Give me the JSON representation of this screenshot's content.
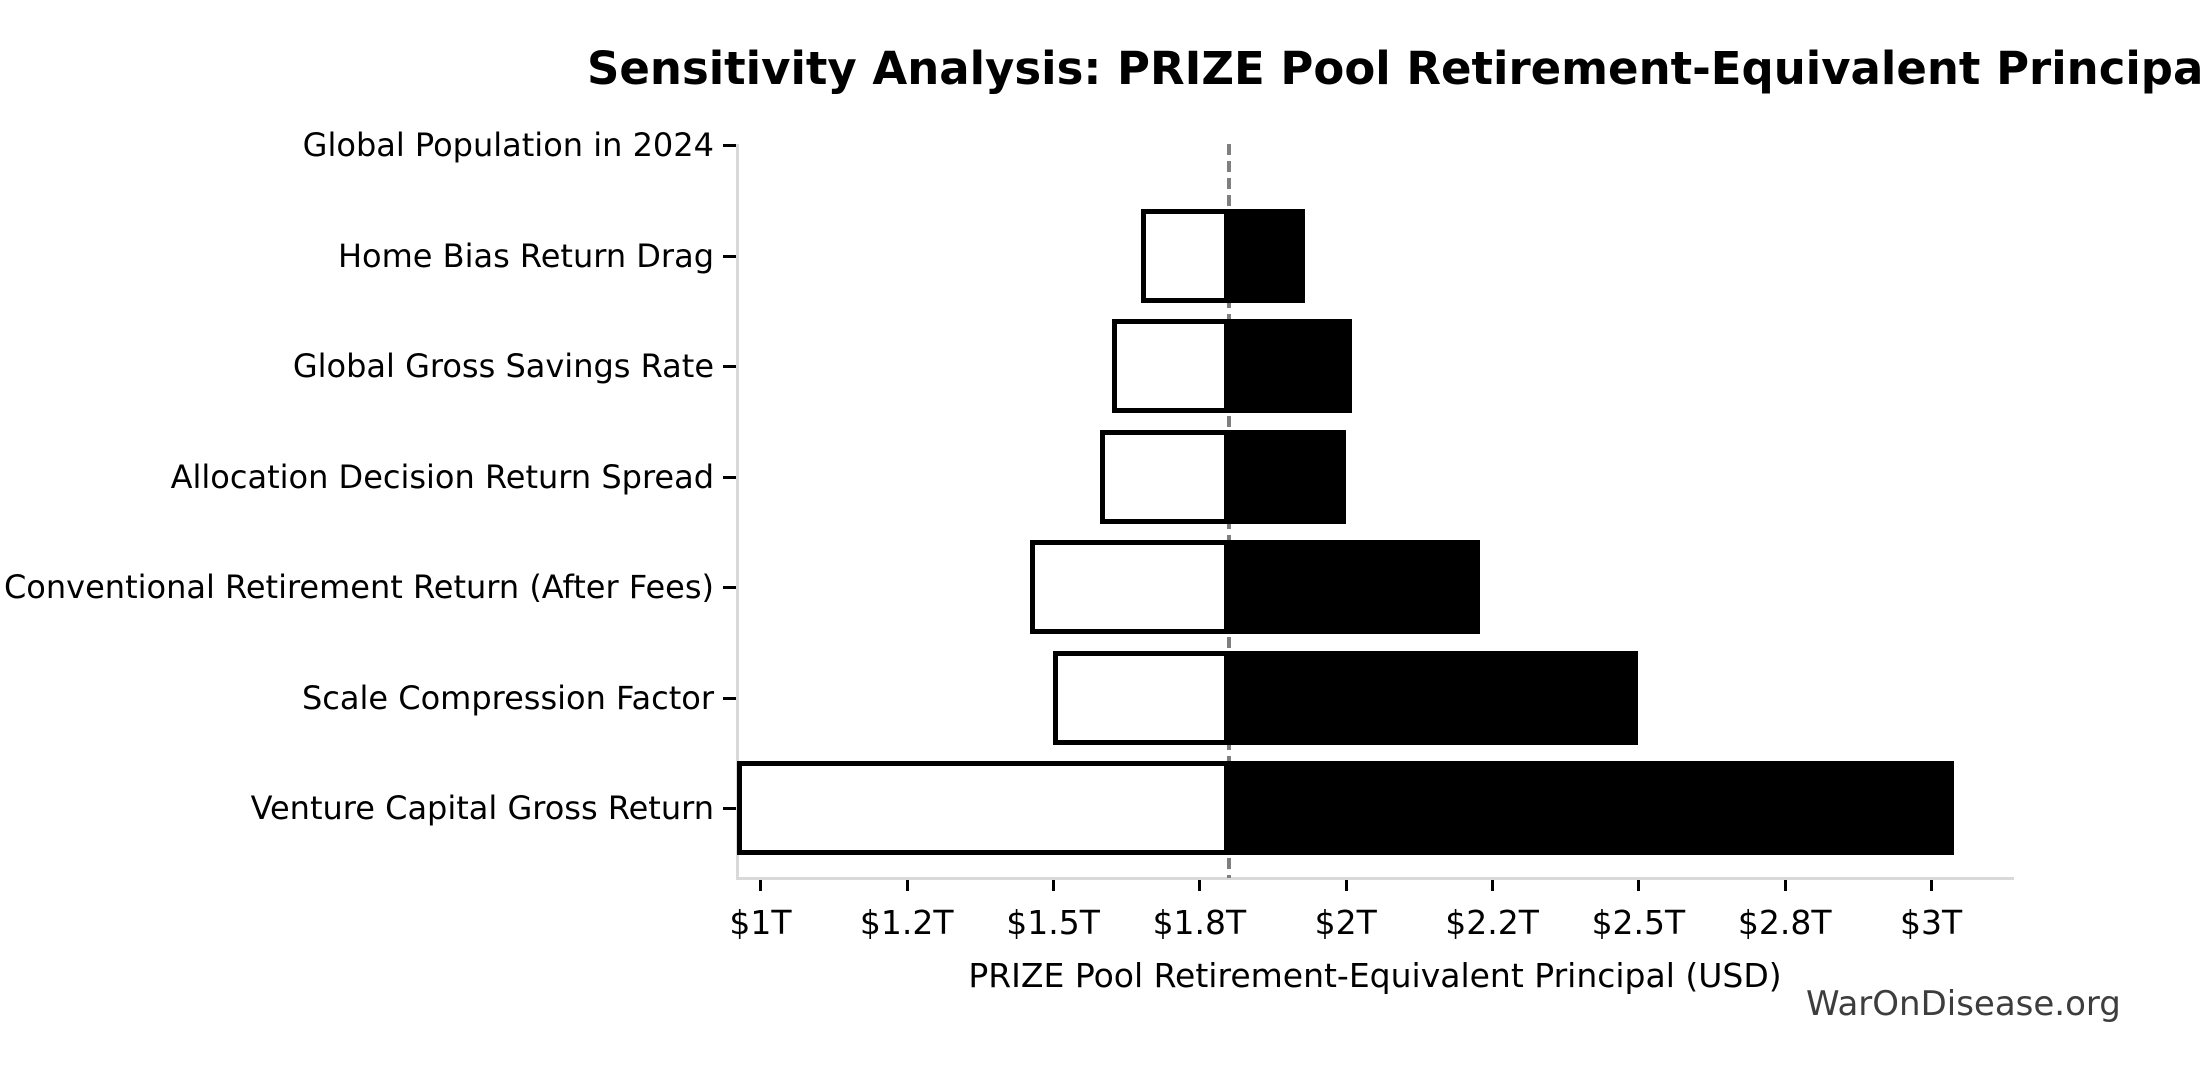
{
  "chart_data": {
    "type": "bar",
    "orientation": "horizontal",
    "variant": "tornado",
    "title": "Sensitivity Analysis: PRIZE Pool Retirement-Equivalent Principal",
    "xlabel": "PRIZE Pool Retirement-Equivalent Principal (USD)",
    "watermark": "WarOnDisease.org",
    "categories": [
      "Global Population in 2024",
      "Home Bias Return Drag",
      "Global Gross Savings Rate",
      "Allocation Decision Return Spread",
      "Conventional Retirement Return (After Fees)",
      "Scale Compression Factor",
      "Venture Capital Gross Return"
    ],
    "baseline": 1.8,
    "series": [
      {
        "name": "low-case",
        "color": "#ffffff",
        "values": [
          1.8,
          1.65,
          1.6,
          1.58,
          1.46,
          1.5,
          0.96
        ]
      },
      {
        "name": "high-case",
        "color": "#000000",
        "values": [
          1.8,
          1.93,
          2.01,
          2.0,
          2.23,
          2.5,
          3.04
        ]
      }
    ],
    "x_ticks": {
      "values": [
        1.0,
        1.25,
        1.5,
        1.75,
        2.0,
        2.25,
        2.5,
        2.75,
        3.0
      ],
      "labels": [
        "$1T",
        "$1.2T",
        "$1.5T",
        "$1.8T",
        "$2T",
        "$2.2T",
        "$2.5T",
        "$2.8T",
        "$3T"
      ]
    },
    "xlim": [
      0.96,
      3.14
    ],
    "grid": false,
    "legend": false,
    "colors": {
      "bar_fill_low": "#ffffff",
      "bar_fill_high": "#000000",
      "bar_edge": "#000000",
      "baseline_line": "#7f7f7f",
      "axis_spine": "#d9d9d9",
      "tick": "#000000",
      "text": "#000000",
      "watermark": "#3d3d3d",
      "background": "#ffffff"
    }
  }
}
